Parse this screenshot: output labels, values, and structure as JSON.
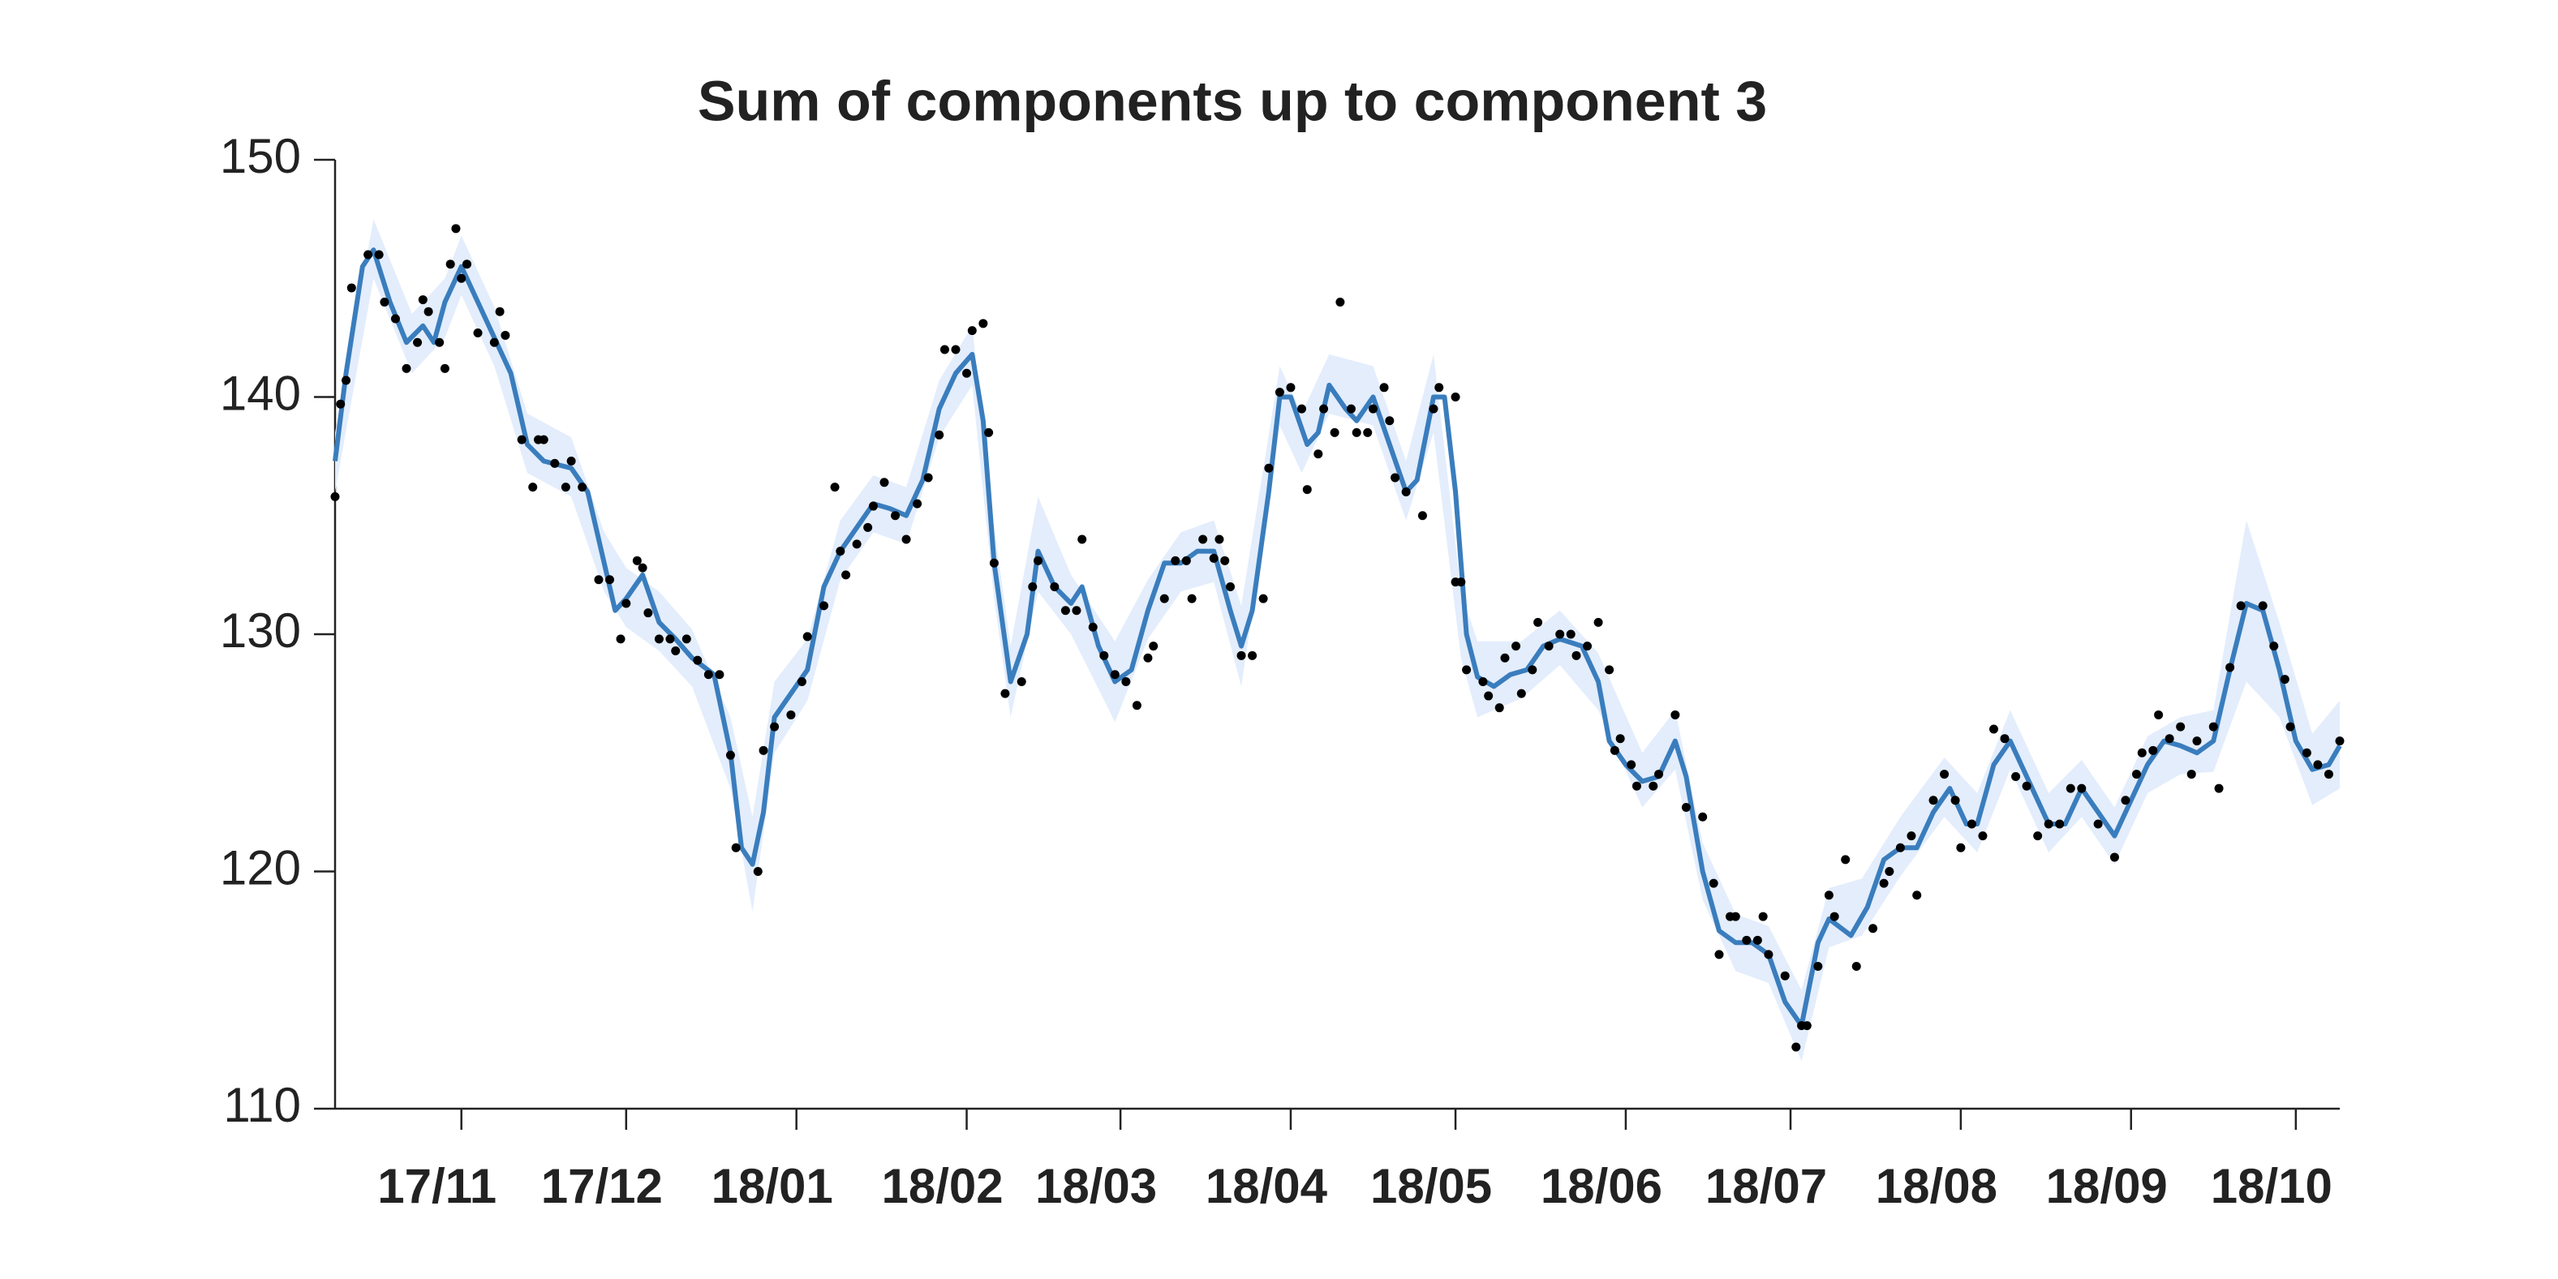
{
  "chart_data": {
    "type": "line",
    "title": "Sum of components up to component 3",
    "xlim": [
      8,
      373
    ],
    "xticks": [
      {
        "value": 31,
        "label": "17/11"
      },
      {
        "value": 61,
        "label": "17/12"
      },
      {
        "value": 92,
        "label": "18/01"
      },
      {
        "value": 123,
        "label": "18/02"
      },
      {
        "value": 151,
        "label": "18/03"
      },
      {
        "value": 182,
        "label": "18/04"
      },
      {
        "value": 212,
        "label": "18/05"
      },
      {
        "value": 243,
        "label": "18/06"
      },
      {
        "value": 273,
        "label": "18/07"
      },
      {
        "value": 304,
        "label": "18/08"
      },
      {
        "value": 335,
        "label": "18/09"
      },
      {
        "value": 365,
        "label": "18/10"
      }
    ],
    "ylim": [
      110,
      150
    ],
    "yticks": [
      110,
      120,
      130,
      140,
      150
    ],
    "series": [
      {
        "type": "band",
        "color": "#e3edfc",
        "x": [
          8,
          15,
          22,
          28,
          31,
          37,
          43,
          51,
          57,
          61,
          67,
          73,
          80,
          84,
          88,
          94,
          100,
          106,
          112,
          118,
          124,
          128,
          131,
          136,
          142,
          150,
          156,
          162,
          168,
          173,
          180,
          184,
          189,
          197,
          203,
          208,
          213,
          216,
          224,
          231,
          238,
          246,
          252,
          257,
          263,
          269,
          275,
          280,
          286,
          293,
          301,
          307,
          313,
          320,
          326,
          332,
          338,
          344,
          350,
          356,
          362,
          368,
          373
        ],
        "lower": [
          136,
          145,
          141,
          142.5,
          144.3,
          141.3,
          136.8,
          135.8,
          131.8,
          130.3,
          129.3,
          127.8,
          123.5,
          118.3,
          125,
          127.2,
          132.3,
          134.3,
          133.8,
          138.3,
          140.5,
          131.5,
          126.5,
          131.8,
          130,
          126.3,
          129.8,
          131.8,
          132.2,
          127.8,
          138.8,
          136.8,
          139.3,
          138.8,
          134.8,
          138.5,
          129,
          126.5,
          127.3,
          128.7,
          126.8,
          122.7,
          124.3,
          118.8,
          115.8,
          115.3,
          112,
          116.8,
          117.3,
          119.8,
          122.3,
          120.8,
          124.3,
          120.8,
          122.3,
          120.3,
          123.3,
          124.1,
          124.2,
          128,
          126.5,
          122.8,
          123.5
        ],
        "upper": [
          138.5,
          147.5,
          143.5,
          145,
          146.8,
          143.8,
          139.3,
          138.3,
          134.3,
          132.8,
          131.8,
          130.2,
          126.5,
          122.3,
          128,
          129.8,
          134.8,
          136.7,
          136.2,
          140.7,
          143,
          134.5,
          129.5,
          135.8,
          132.5,
          129.7,
          132.3,
          134.3,
          134.8,
          131.2,
          141.3,
          139.3,
          141.8,
          141.3,
          137.3,
          141.8,
          131.8,
          129.7,
          129.7,
          131,
          129.2,
          125,
          126.8,
          121.2,
          118.2,
          117.7,
          115,
          119.3,
          119.7,
          122.3,
          124.8,
          123.3,
          126.8,
          123.3,
          124.7,
          122.7,
          125.7,
          126.5,
          126.8,
          134.8,
          130.5,
          125.8,
          127.2
        ]
      },
      {
        "type": "line",
        "color": "#3a7dbd",
        "x": [
          8,
          10,
          13,
          15,
          18,
          21,
          24,
          26,
          28,
          31,
          34,
          37,
          40,
          43,
          46,
          51,
          54,
          57,
          59,
          61,
          64,
          67,
          70,
          73,
          77,
          80,
          82,
          84,
          86,
          88,
          91,
          94,
          97,
          100,
          103,
          106,
          109,
          112,
          115,
          118,
          121,
          124,
          126,
          128,
          131,
          134,
          136,
          139,
          142,
          144,
          147,
          150,
          153,
          156,
          159,
          162,
          165,
          168,
          171,
          173,
          175,
          178,
          180,
          182,
          185,
          187,
          189,
          192,
          194,
          197,
          200,
          203,
          205,
          208,
          210,
          212,
          214,
          216,
          219,
          222,
          225,
          228,
          231,
          235,
          238,
          240,
          243,
          246,
          249,
          252,
          254,
          257,
          260,
          263,
          266,
          269,
          272,
          275,
          278,
          280,
          284,
          287,
          290,
          293,
          296,
          299,
          302,
          305,
          307,
          310,
          313,
          317,
          320,
          323,
          326,
          329,
          332,
          335,
          338,
          341,
          344,
          347,
          350,
          353,
          356,
          359,
          362,
          365,
          368,
          371,
          373
        ],
        "values": [
          137.3,
          141,
          145.5,
          146.2,
          144,
          142.3,
          143,
          142.3,
          144,
          145.5,
          144,
          142.5,
          141,
          138,
          137.3,
          137,
          136,
          133,
          131,
          131.5,
          132.5,
          130.5,
          129.8,
          129,
          128.3,
          125,
          121,
          120.3,
          122.5,
          126.5,
          127.5,
          128.5,
          132,
          133.5,
          134.5,
          135.5,
          135.3,
          135,
          136.5,
          139.5,
          141,
          141.8,
          139,
          133,
          128,
          130,
          133.5,
          132,
          131.3,
          132,
          129.5,
          128,
          128.5,
          131,
          133,
          133,
          133.5,
          133.5,
          131,
          129.5,
          131,
          136,
          140,
          140,
          138,
          138.5,
          140.5,
          139.5,
          139,
          140,
          138,
          136,
          136.5,
          140,
          140,
          136,
          130,
          128.2,
          127.8,
          128.3,
          128.5,
          129.5,
          129.8,
          129.5,
          128,
          125.5,
          124.5,
          123.8,
          124,
          125.5,
          124,
          120,
          117.5,
          117,
          117,
          116.5,
          114.5,
          113.5,
          117,
          118,
          117.3,
          118.5,
          120.5,
          121,
          121,
          122.5,
          123.5,
          122,
          122,
          124.5,
          125.5,
          123.5,
          122,
          122,
          123.5,
          122.5,
          121.5,
          123,
          124.5,
          125.5,
          125.3,
          125,
          125.5,
          128.5,
          131.3,
          131,
          128.5,
          125.5,
          124.3,
          124.5,
          125.3
        ]
      },
      {
        "type": "scatter",
        "color": "#000000",
        "x": [
          8,
          9,
          10,
          11,
          14,
          16,
          17,
          19,
          21,
          23,
          24,
          25,
          27,
          28,
          29,
          30,
          31,
          32,
          34,
          37,
          38,
          39,
          42,
          44,
          45,
          46,
          48,
          50,
          51,
          53,
          56,
          58,
          60,
          61,
          63,
          64,
          65,
          67,
          69,
          70,
          72,
          74,
          76,
          78,
          80,
          81,
          85,
          86,
          88,
          91,
          93,
          94,
          97,
          99,
          100,
          101,
          103,
          105,
          106,
          108,
          110,
          112,
          114,
          116,
          118,
          119,
          121,
          123,
          124,
          126,
          127,
          128,
          130,
          133,
          135,
          136,
          139,
          141,
          143,
          144,
          146,
          148,
          150,
          152,
          154,
          156,
          157,
          159,
          161,
          163,
          164,
          166,
          168,
          169,
          170,
          171,
          173,
          175,
          177,
          178,
          180,
          182,
          184,
          185,
          187,
          188,
          190,
          191,
          193,
          194,
          196,
          197,
          199,
          200,
          201,
          203,
          206,
          208,
          209,
          212,
          212,
          213,
          214,
          217,
          218,
          220,
          221,
          223,
          224,
          226,
          227,
          229,
          231,
          233,
          234,
          236,
          238,
          240,
          241,
          242,
          244,
          245,
          248,
          249,
          252,
          254,
          257,
          259,
          260,
          262,
          263,
          265,
          267,
          268,
          269,
          272,
          274,
          275,
          276,
          278,
          280,
          281,
          283,
          285,
          288,
          290,
          291,
          293,
          295,
          296,
          299,
          301,
          303,
          304,
          306,
          308,
          310,
          312,
          314,
          316,
          318,
          320,
          322,
          324,
          326,
          329,
          332,
          334,
          336,
          337,
          339,
          340,
          342,
          344,
          346,
          347,
          350,
          351,
          353,
          355,
          359,
          361,
          363,
          364,
          367,
          369,
          371,
          373
        ],
        "values": [
          135.8,
          139.7,
          140.7,
          144.6,
          146,
          146,
          144,
          143.3,
          141.2,
          142.3,
          144.1,
          143.6,
          142.3,
          141.2,
          145.6,
          147.1,
          145,
          145.6,
          142.7,
          142.3,
          143.6,
          142.6,
          138.2,
          136.2,
          138.2,
          138.2,
          137.2,
          136.2,
          137.3,
          136.2,
          132.3,
          132.3,
          129.8,
          131.3,
          133.1,
          132.8,
          130.9,
          129.8,
          129.8,
          129.3,
          129.8,
          128.9,
          128.3,
          128.3,
          124.9,
          121,
          120,
          125.1,
          126.1,
          126.6,
          128,
          129.9,
          131.2,
          136.2,
          133.5,
          132.5,
          133.8,
          134.5,
          135.4,
          136.4,
          135,
          134,
          135.5,
          136.6,
          138.4,
          142,
          142,
          141,
          142.8,
          143.1,
          138.5,
          133,
          127.5,
          128,
          132,
          133.1,
          132,
          131,
          131,
          134,
          130.3,
          129.1,
          128.3,
          128,
          127,
          129,
          129.5,
          131.5,
          133.1,
          133.1,
          131.5,
          134,
          133.2,
          134,
          133.1,
          132,
          129.1,
          129.1,
          131.5,
          137,
          140.2,
          140.4,
          139.5,
          136.1,
          137.6,
          139.5,
          138.5,
          144,
          139.5,
          138.5,
          138.5,
          139.5,
          140.4,
          139,
          136.6,
          136,
          135,
          139.5,
          140.4,
          140,
          132.2,
          132.2,
          128.5,
          128,
          127.4,
          126.9,
          129,
          129.5,
          127.5,
          128.5,
          130.5,
          129.5,
          130,
          130,
          129.1,
          129.5,
          130.5,
          128.5,
          125.1,
          125.6,
          124.5,
          123.6,
          123.6,
          124.1,
          126.6,
          122.7,
          122.3,
          119.5,
          116.5,
          118.1,
          118.1,
          117.1,
          117.1,
          118.1,
          116.5,
          115.6,
          112.6,
          113.5,
          113.5,
          116,
          119,
          118.1,
          120.5,
          116,
          117.6,
          119.5,
          120,
          121,
          121.5,
          119,
          123,
          124.1,
          123,
          121,
          122,
          121.5,
          126,
          125.6,
          124,
          123.6,
          121.5,
          122,
          122,
          123.5,
          123.5,
          122,
          120.6,
          123,
          124.1,
          125,
          125.1,
          126.6,
          125.6,
          126.1,
          124.1,
          125.5,
          126.1,
          123.5,
          128.6,
          131.2,
          131.2,
          129.5,
          128.1,
          126.1,
          125,
          124.5,
          124.1,
          125.5
        ]
      }
    ]
  }
}
